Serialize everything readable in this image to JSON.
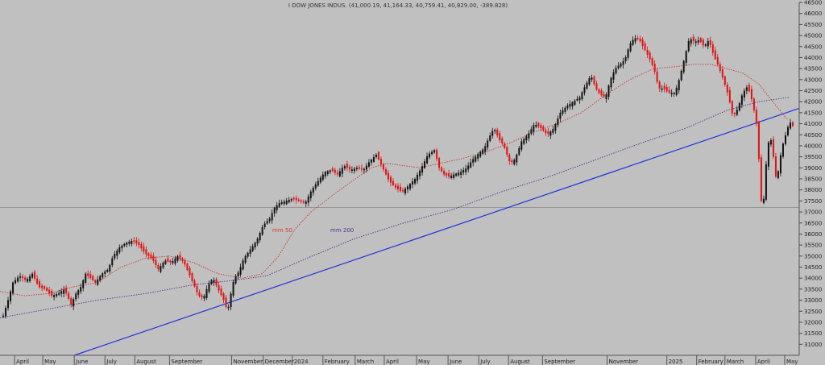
{
  "chart_data": {
    "type": "candlestick",
    "title": "I DOW JONES INDUS. (41,000.19, 41,164.33, 40,759.41, 40,829.00, -389.828)",
    "ylim": [
      30500,
      46500
    ],
    "yticks": [
      31000,
      31500,
      32000,
      32500,
      33000,
      33500,
      34000,
      34500,
      35000,
      35500,
      36000,
      36500,
      37000,
      37500,
      38000,
      38500,
      39000,
      39500,
      40000,
      40500,
      41000,
      41500,
      42000,
      42500,
      43000,
      43500,
      44000,
      44500,
      45000,
      45500,
      46000,
      46500
    ],
    "xlim": [
      0,
      990
    ],
    "xticks": [
      {
        "x": 18,
        "label": "April"
      },
      {
        "x": 53,
        "label": "May"
      },
      {
        "x": 92,
        "label": "June"
      },
      {
        "x": 130,
        "label": "July"
      },
      {
        "x": 167,
        "label": "August"
      },
      {
        "x": 210,
        "label": "September"
      },
      {
        "x": 287,
        "label": "November"
      },
      {
        "x": 326,
        "label": "December"
      },
      {
        "x": 362,
        "label": "2024"
      },
      {
        "x": 400,
        "label": "February"
      },
      {
        "x": 440,
        "label": "March"
      },
      {
        "x": 476,
        "label": "April"
      },
      {
        "x": 516,
        "label": "May"
      },
      {
        "x": 555,
        "label": "June"
      },
      {
        "x": 593,
        "label": "July"
      },
      {
        "x": 630,
        "label": "August"
      },
      {
        "x": 672,
        "label": "September"
      },
      {
        "x": 752,
        "label": "November"
      },
      {
        "x": 826,
        "label": "2025"
      },
      {
        "x": 863,
        "label": "February"
      },
      {
        "x": 898,
        "label": "March"
      },
      {
        "x": 936,
        "label": "April"
      },
      {
        "x": 972,
        "label": "May"
      }
    ],
    "price_path": [
      [
        4,
        32300
      ],
      [
        10,
        33000
      ],
      [
        16,
        33800
      ],
      [
        24,
        34100
      ],
      [
        32,
        33900
      ],
      [
        40,
        34200
      ],
      [
        48,
        33600
      ],
      [
        56,
        33500
      ],
      [
        64,
        33200
      ],
      [
        72,
        33300
      ],
      [
        80,
        33500
      ],
      [
        88,
        32800
      ],
      [
        94,
        33300
      ],
      [
        100,
        33600
      ],
      [
        106,
        34200
      ],
      [
        112,
        34000
      ],
      [
        118,
        33800
      ],
      [
        126,
        34200
      ],
      [
        134,
        34400
      ],
      [
        140,
        35000
      ],
      [
        148,
        35400
      ],
      [
        156,
        35600
      ],
      [
        164,
        35700
      ],
      [
        172,
        35500
      ],
      [
        180,
        35100
      ],
      [
        188,
        34900
      ],
      [
        196,
        34400
      ],
      [
        204,
        34800
      ],
      [
        212,
        34700
      ],
      [
        220,
        35000
      ],
      [
        228,
        34700
      ],
      [
        234,
        34200
      ],
      [
        240,
        33700
      ],
      [
        246,
        33200
      ],
      [
        252,
        33100
      ],
      [
        258,
        33700
      ],
      [
        264,
        34000
      ],
      [
        270,
        33500
      ],
      [
        276,
        33100
      ],
      [
        282,
        32500
      ],
      [
        286,
        33300
      ],
      [
        290,
        34000
      ],
      [
        296,
        34300
      ],
      [
        302,
        34900
      ],
      [
        310,
        35300
      ],
      [
        318,
        35700
      ],
      [
        326,
        36400
      ],
      [
        334,
        36700
      ],
      [
        340,
        37200
      ],
      [
        346,
        37400
      ],
      [
        354,
        37500
      ],
      [
        362,
        37600
      ],
      [
        370,
        37500
      ],
      [
        378,
        37400
      ],
      [
        386,
        38000
      ],
      [
        394,
        38400
      ],
      [
        402,
        38800
      ],
      [
        410,
        38900
      ],
      [
        418,
        38700
      ],
      [
        426,
        39100
      ],
      [
        434,
        38900
      ],
      [
        442,
        39000
      ],
      [
        450,
        38900
      ],
      [
        458,
        39300
      ],
      [
        466,
        39600
      ],
      [
        474,
        39000
      ],
      [
        482,
        38400
      ],
      [
        490,
        38100
      ],
      [
        498,
        37900
      ],
      [
        506,
        38200
      ],
      [
        514,
        38500
      ],
      [
        522,
        39000
      ],
      [
        530,
        39600
      ],
      [
        538,
        39800
      ],
      [
        544,
        39000
      ],
      [
        550,
        38700
      ],
      [
        556,
        38600
      ],
      [
        562,
        38700
      ],
      [
        570,
        38800
      ],
      [
        578,
        39000
      ],
      [
        586,
        39400
      ],
      [
        594,
        39700
      ],
      [
        600,
        39900
      ],
      [
        606,
        40400
      ],
      [
        612,
        40800
      ],
      [
        618,
        40300
      ],
      [
        624,
        40000
      ],
      [
        632,
        39200
      ],
      [
        638,
        39400
      ],
      [
        646,
        40200
      ],
      [
        654,
        40500
      ],
      [
        662,
        41000
      ],
      [
        670,
        40800
      ],
      [
        678,
        40500
      ],
      [
        686,
        40800
      ],
      [
        694,
        41500
      ],
      [
        702,
        41800
      ],
      [
        710,
        42000
      ],
      [
        718,
        42200
      ],
      [
        726,
        42800
      ],
      [
        732,
        43200
      ],
      [
        738,
        42600
      ],
      [
        744,
        42300
      ],
      [
        750,
        42200
      ],
      [
        756,
        43000
      ],
      [
        762,
        43500
      ],
      [
        768,
        43700
      ],
      [
        774,
        43900
      ],
      [
        780,
        44600
      ],
      [
        786,
        44900
      ],
      [
        792,
        44800
      ],
      [
        798,
        44400
      ],
      [
        804,
        44000
      ],
      [
        810,
        43500
      ],
      [
        816,
        42600
      ],
      [
        822,
        42600
      ],
      [
        828,
        42400
      ],
      [
        836,
        42400
      ],
      [
        842,
        43100
      ],
      [
        848,
        44000
      ],
      [
        854,
        44900
      ],
      [
        860,
        44700
      ],
      [
        866,
        44800
      ],
      [
        872,
        44500
      ],
      [
        878,
        44800
      ],
      [
        884,
        44100
      ],
      [
        890,
        43600
      ],
      [
        896,
        43000
      ],
      [
        902,
        42300
      ],
      [
        908,
        41300
      ],
      [
        914,
        41700
      ],
      [
        920,
        42400
      ],
      [
        926,
        42700
      ],
      [
        932,
        42000
      ],
      [
        938,
        40800
      ],
      [
        942,
        38000
      ],
      [
        944,
        37000
      ],
      [
        947,
        37900
      ],
      [
        950,
        39800
      ],
      [
        954,
        40500
      ],
      [
        958,
        39500
      ],
      [
        962,
        38300
      ],
      [
        966,
        39400
      ],
      [
        970,
        40100
      ],
      [
        974,
        40600
      ],
      [
        978,
        41100
      ],
      [
        982,
        40900
      ]
    ],
    "series": [
      {
        "name": "mm 50",
        "color": "#cc3333",
        "style": "dotted",
        "points": [
          [
            0,
            33400
          ],
          [
            30,
            33200
          ],
          [
            60,
            33300
          ],
          [
            90,
            33600
          ],
          [
            120,
            33800
          ],
          [
            150,
            34500
          ],
          [
            180,
            34900
          ],
          [
            210,
            35000
          ],
          [
            240,
            34700
          ],
          [
            270,
            34200
          ],
          [
            300,
            34000
          ],
          [
            325,
            34200
          ],
          [
            345,
            35000
          ],
          [
            365,
            36200
          ],
          [
            385,
            37000
          ],
          [
            410,
            37700
          ],
          [
            440,
            38500
          ],
          [
            460,
            39000
          ],
          [
            480,
            39200
          ],
          [
            500,
            39100
          ],
          [
            520,
            39000
          ],
          [
            545,
            39200
          ],
          [
            570,
            39400
          ],
          [
            600,
            39700
          ],
          [
            630,
            40100
          ],
          [
            660,
            40600
          ],
          [
            690,
            41000
          ],
          [
            720,
            41500
          ],
          [
            750,
            42300
          ],
          [
            780,
            43000
          ],
          [
            810,
            43500
          ],
          [
            840,
            43600
          ],
          [
            860,
            43700
          ],
          [
            880,
            43700
          ],
          [
            900,
            43500
          ],
          [
            920,
            43300
          ],
          [
            940,
            42800
          ],
          [
            955,
            42100
          ],
          [
            975,
            41200
          ]
        ]
      },
      {
        "name": "mm 200",
        "color": "#553388",
        "style": "dotted",
        "points": [
          [
            0,
            32200
          ],
          [
            60,
            32600
          ],
          [
            120,
            33000
          ],
          [
            180,
            33300
          ],
          [
            240,
            33700
          ],
          [
            290,
            33900
          ],
          [
            330,
            34100
          ],
          [
            380,
            34900
          ],
          [
            440,
            35800
          ],
          [
            500,
            36500
          ],
          [
            560,
            37100
          ],
          [
            620,
            37900
          ],
          [
            680,
            38600
          ],
          [
            740,
            39400
          ],
          [
            800,
            40200
          ],
          [
            850,
            40800
          ],
          [
            900,
            41600
          ],
          [
            940,
            42000
          ],
          [
            978,
            42200
          ]
        ]
      }
    ],
    "annotations": [
      {
        "text": "mm 50",
        "color": "#dd3333"
      },
      {
        "text": "mm 200",
        "color": "#553388"
      }
    ],
    "trendline": {
      "color": "#2233dd",
      "points": [
        [
          92,
          30500
        ],
        [
          990,
          41700
        ]
      ]
    },
    "horizontal_line": {
      "color": "#888888",
      "value": 37200
    }
  }
}
